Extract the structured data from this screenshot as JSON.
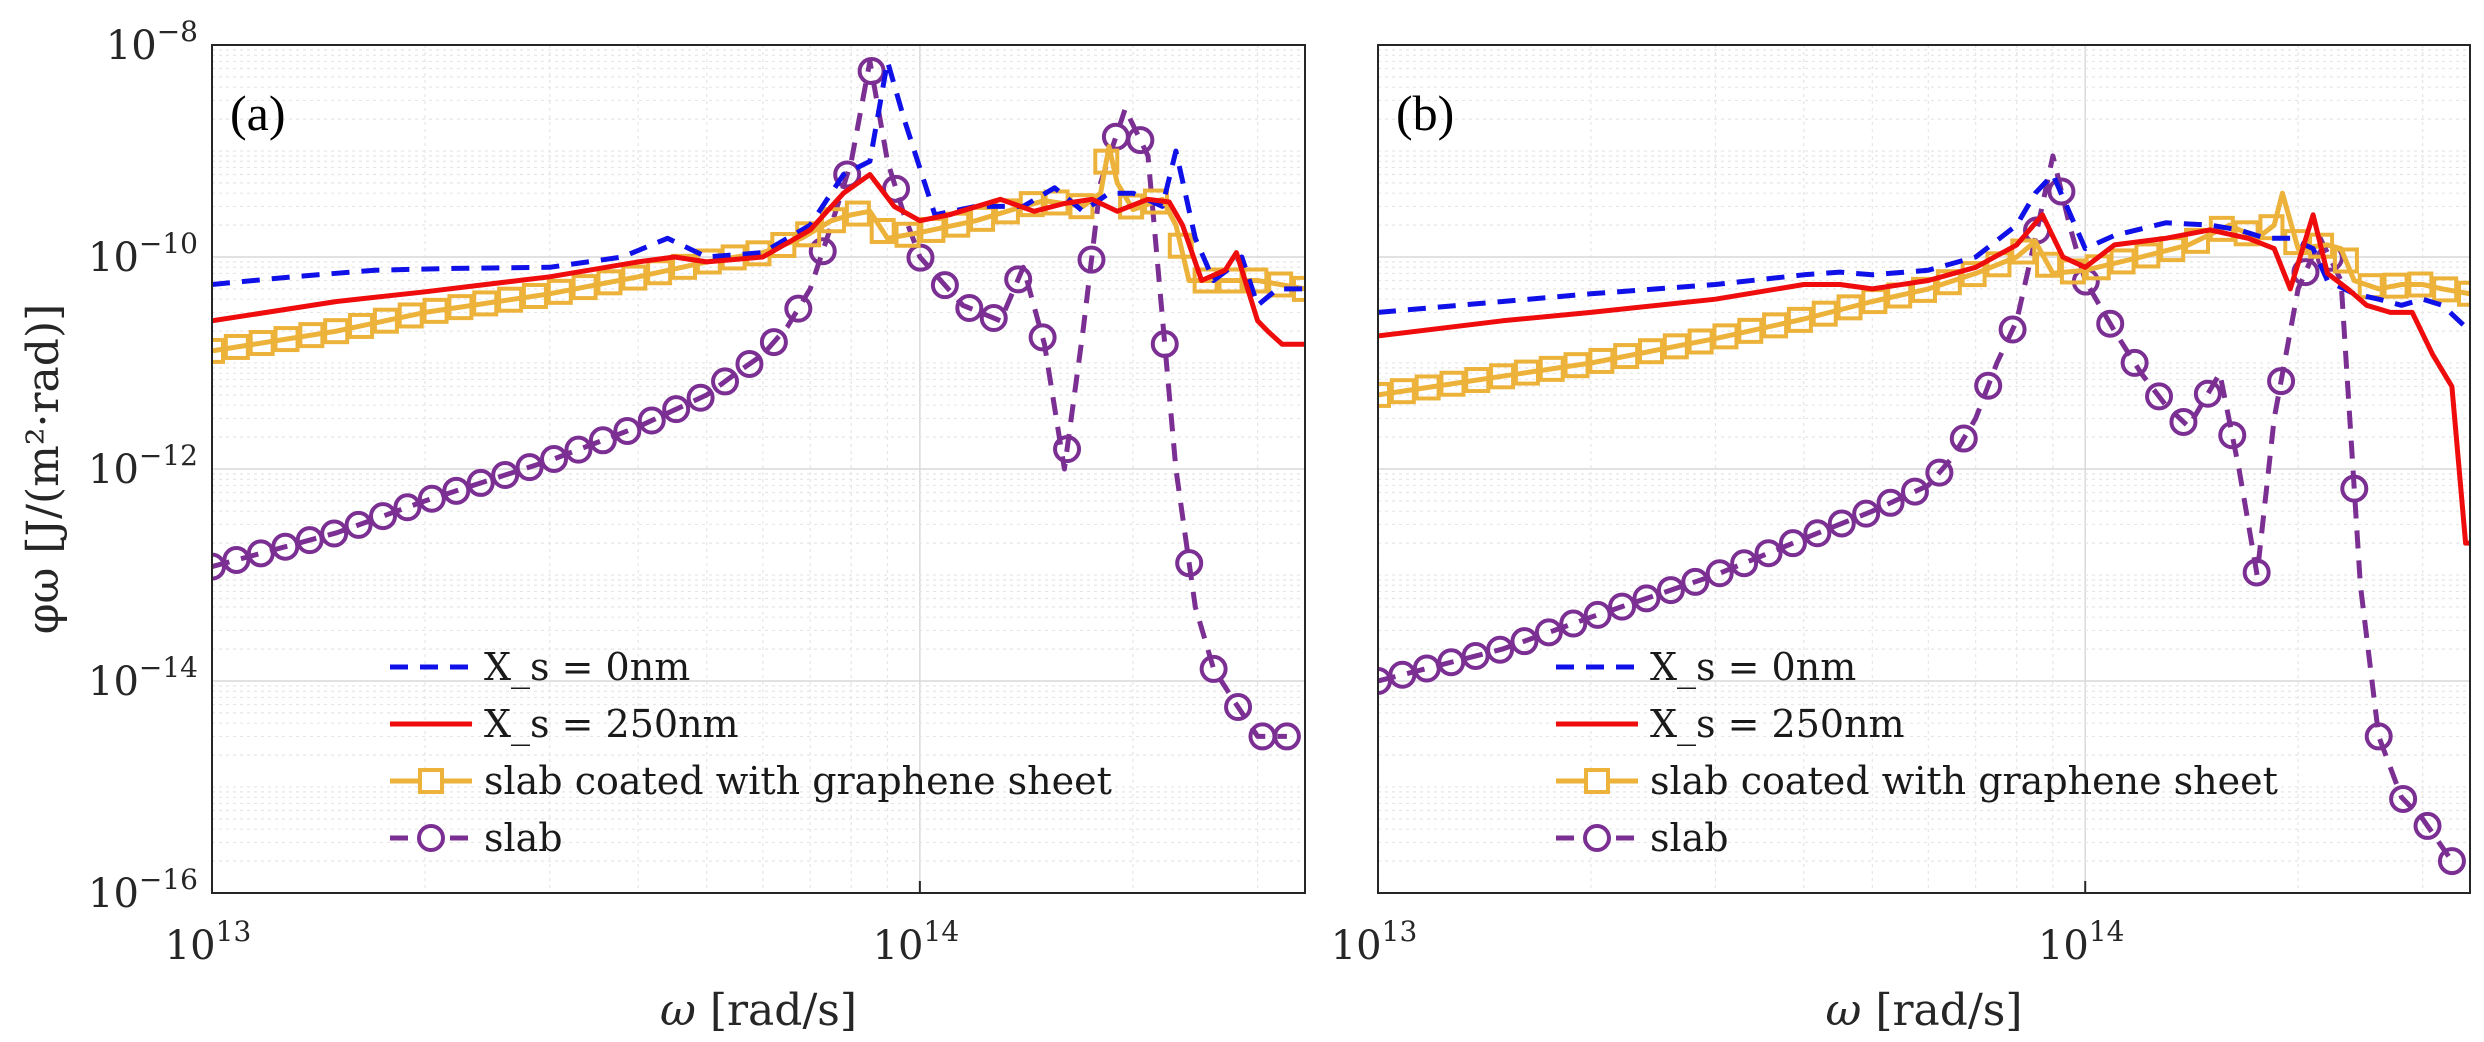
{
  "colors": {
    "xs0": "#1010e8",
    "xs250": "#ee0c0c",
    "coated": "#ecb23a",
    "slab": "#7b2f93",
    "grid_major": "#d9d9d9",
    "grid_minor": "#e6e6e6",
    "axis": "#262626"
  },
  "axes": {
    "ylabel": "φω [J/(m²·rad)]",
    "xlabel_symbol": "ω",
    "xlabel_unit": "[rad/s]",
    "x_ticks": [
      {
        "base": "10",
        "exp": "13"
      },
      {
        "base": "10",
        "exp": "14"
      }
    ],
    "y_ticks": [
      {
        "base": "10",
        "exp": "−8"
      },
      {
        "base": "10",
        "exp": "−10"
      },
      {
        "base": "10",
        "exp": "−12"
      },
      {
        "base": "10",
        "exp": "−14"
      },
      {
        "base": "10",
        "exp": "−16"
      }
    ]
  },
  "legend": {
    "xs0": "X_s = 0nm",
    "xs250": "X_s = 250nm",
    "coated": "slab coated with graphene sheet",
    "slab": "slab"
  },
  "chart_data": [
    {
      "type": "line",
      "panel": "(a)",
      "xscale": "log",
      "yscale": "log",
      "xlim": [
        10000000000000.0,
        350000000000000.0
      ],
      "ylim": [
        1e-16,
        1e-08
      ],
      "xlabel": "ω [rad/s]",
      "ylabel": "φω [J/(m²·rad)]",
      "grid": true,
      "legend_position": "lower-left",
      "series": [
        {
          "name": "X_s = 0nm",
          "style": "dashed",
          "x": [
            10000000000000.0,
            13000000000000.0,
            17000000000000.0,
            22000000000000.0,
            30000000000000.0,
            38000000000000.0,
            44000000000000.0,
            50000000000000.0,
            60000000000000.0,
            70000000000000.0,
            78000000000000.0,
            85000000000000.0,
            90000000000000.0,
            95000000000000.0,
            105000000000000.0,
            120000000000000.0,
            140000000000000.0,
            155000000000000.0,
            170000000000000.0,
            185000000000000.0,
            200000000000000.0,
            220000000000000.0,
            230000000000000.0,
            245000000000000.0,
            260000000000000.0,
            275000000000000.0,
            285000000000000.0,
            300000000000000.0,
            320000000000000.0,
            350000000000000.0
          ],
          "y": [
            5.5e-11,
            6.5e-11,
            7.5e-11,
            7.8e-11,
            8e-11,
            1e-10,
            1.5e-10,
            1e-10,
            1.1e-10,
            2e-10,
            6e-10,
            8e-10,
            7e-09,
            2e-09,
            2.5e-10,
            3e-10,
            3e-10,
            4.5e-10,
            2.7e-10,
            4e-10,
            4e-10,
            3e-10,
            1e-09,
            1.5e-10,
            6e-11,
            8e-11,
            1e-10,
            3.5e-11,
            5e-11,
            5e-11
          ]
        },
        {
          "name": "X_s = 250nm",
          "style": "solid",
          "x": [
            10000000000000.0,
            15000000000000.0,
            20000000000000.0,
            30000000000000.0,
            40000000000000.0,
            45000000000000.0,
            50000000000000.0,
            60000000000000.0,
            70000000000000.0,
            78000000000000.0,
            85000000000000.0,
            92000000000000.0,
            100000000000000.0,
            110000000000000.0,
            130000000000000.0,
            145000000000000.0,
            160000000000000.0,
            175000000000000.0,
            190000000000000.0,
            210000000000000.0,
            225000000000000.0,
            235000000000000.0,
            250000000000000.0,
            270000000000000.0,
            280000000000000.0,
            300000000000000.0,
            310000000000000.0,
            325000000000000.0,
            350000000000000.0
          ],
          "y": [
            2.5e-11,
            3.8e-11,
            4.7e-11,
            6.5e-11,
            9e-11,
            1e-10,
            9e-11,
            1e-10,
            1.8e-10,
            4e-10,
            6e-10,
            3e-10,
            2.2e-10,
            2.5e-10,
            3.5e-10,
            2.7e-10,
            3.2e-10,
            3.5e-10,
            2.7e-10,
            3.5e-10,
            3.3e-10,
            2e-10,
            6e-11,
            7.5e-11,
            1.1e-10,
            2.5e-11,
            2e-11,
            1.5e-11,
            1.5e-11
          ]
        },
        {
          "name": "slab coated with graphene sheet",
          "style": "solid-square",
          "x": [
            10000000000000.0,
            15000000000000.0,
            20000000000000.0,
            30000000000000.0,
            40000000000000.0,
            50000000000000.0,
            60000000000000.0,
            68000000000000.0,
            75000000000000.0,
            80000000000000.0,
            85000000000000.0,
            90000000000000.0,
            100000000000000.0,
            120000000000000.0,
            140000000000000.0,
            150000000000000.0,
            170000000000000.0,
            180000000000000.0,
            185000000000000.0,
            190000000000000.0,
            200000000000000.0,
            220000000000000.0,
            230000000000000.0,
            240000000000000.0,
            260000000000000.0,
            300000000000000.0,
            350000000000000.0
          ],
          "y": [
            1.3e-11,
            2e-11,
            3e-11,
            4.5e-11,
            6.5e-11,
            9e-11,
            1.1e-10,
            1.5e-10,
            2.2e-10,
            2.5e-10,
            2.7e-10,
            1.5e-10,
            1.7e-10,
            2.2e-10,
            3e-10,
            3.4e-10,
            3e-10,
            4e-10,
            1.1e-09,
            5e-10,
            2.8e-10,
            3.5e-10,
            2e-10,
            6e-11,
            6e-11,
            6e-11,
            5e-11
          ]
        },
        {
          "name": "slab",
          "style": "dashed-circle",
          "x": [
            10000000000000.0,
            15000000000000.0,
            20000000000000.0,
            30000000000000.0,
            40000000000000.0,
            50000000000000.0,
            55000000000000.0,
            60000000000000.0,
            65000000000000.0,
            70000000000000.0,
            75000000000000.0,
            80000000000000.0,
            85000000000000.0,
            90000000000000.0,
            95000000000000.0,
            100000000000000.0,
            115000000000000.0,
            130000000000000.0,
            140000000000000.0,
            150000000000000.0,
            160000000000000.0,
            170000000000000.0,
            180000000000000.0,
            195000000000000.0,
            210000000000000.0,
            230000000000000.0,
            245000000000000.0,
            260000000000000.0,
            280000000000000.0,
            300000000000000.0,
            330000000000000.0
          ],
          "y": [
            1.2e-13,
            2.5e-13,
            5e-13,
            1.2e-12,
            2.5e-12,
            5e-12,
            8e-12,
            1.2e-11,
            2.2e-11,
            5e-11,
            2e-10,
            8e-10,
            7e-09,
            8e-10,
            2.5e-10,
            1e-10,
            3.5e-11,
            2.5e-11,
            8e-11,
            1.5e-11,
            1e-12,
            2e-11,
            5e-10,
            2.5e-09,
            9e-10,
            1e-12,
            5e-14,
            1.3e-14,
            6e-15,
            3e-15,
            3e-15
          ]
        }
      ]
    },
    {
      "type": "line",
      "panel": "(b)",
      "xscale": "log",
      "yscale": "log",
      "xlim": [
        10000000000000.0,
        350000000000000.0
      ],
      "ylim": [
        1e-16,
        1e-08
      ],
      "xlabel": "ω [rad/s]",
      "ylabel": "",
      "grid": true,
      "legend_position": "lower-left",
      "series": [
        {
          "name": "X_s = 0nm",
          "style": "dashed",
          "x": [
            10000000000000.0,
            15000000000000.0,
            20000000000000.0,
            30000000000000.0,
            40000000000000.0,
            45000000000000.0,
            50000000000000.0,
            60000000000000.0,
            70000000000000.0,
            80000000000000.0,
            85000000000000.0,
            90000000000000.0,
            100000000000000.0,
            110000000000000.0,
            130000000000000.0,
            150000000000000.0,
            165000000000000.0,
            180000000000000.0,
            195000000000000.0,
            210000000000000.0,
            220000000000000.0,
            240000000000000.0,
            260000000000000.0,
            280000000000000.0,
            300000000000000.0,
            320000000000000.0,
            350000000000000.0
          ],
          "y": [
            3e-11,
            3.8e-11,
            4.5e-11,
            5.5e-11,
            6.8e-11,
            7.2e-11,
            6.8e-11,
            7.5e-11,
            1e-10,
            2e-10,
            4e-10,
            6e-10,
            1.2e-10,
            1.6e-10,
            2.1e-10,
            2e-10,
            1.8e-10,
            1.5e-10,
            1.5e-10,
            1.2e-10,
            6e-11,
            4.5e-11,
            4e-11,
            3.5e-11,
            4e-11,
            3.5e-11,
            2e-11
          ]
        },
        {
          "name": "X_s = 250nm",
          "style": "solid",
          "x": [
            10000000000000.0,
            15000000000000.0,
            20000000000000.0,
            30000000000000.0,
            40000000000000.0,
            45000000000000.0,
            50000000000000.0,
            60000000000000.0,
            70000000000000.0,
            80000000000000.0,
            87000000000000.0,
            93000000000000.0,
            100000000000000.0,
            110000000000000.0,
            130000000000000.0,
            150000000000000.0,
            170000000000000.0,
            185000000000000.0,
            195000000000000.0,
            210000000000000.0,
            220000000000000.0,
            235000000000000.0,
            250000000000000.0,
            270000000000000.0,
            290000000000000.0,
            310000000000000.0,
            330000000000000.0,
            345000000000000.0,
            350000000000000.0
          ],
          "y": [
            1.8e-11,
            2.5e-11,
            3e-11,
            4e-11,
            5.5e-11,
            5.5e-11,
            5e-11,
            6e-11,
            8e-11,
            1.3e-10,
            2.5e-10,
            1e-10,
            8e-11,
            1.3e-10,
            1.5e-10,
            1.8e-10,
            1.5e-10,
            1.2e-10,
            5e-11,
            2.5e-10,
            7e-11,
            5e-11,
            3.5e-11,
            3e-11,
            3e-11,
            1.2e-11,
            6e-12,
            2e-13,
            2e-13
          ]
        },
        {
          "name": "slab coated with graphene sheet",
          "style": "solid-square",
          "x": [
            10000000000000.0,
            15000000000000.0,
            20000000000000.0,
            30000000000000.0,
            40000000000000.0,
            50000000000000.0,
            60000000000000.0,
            70000000000000.0,
            80000000000000.0,
            85000000000000.0,
            90000000000000.0,
            100000000000000.0,
            120000000000000.0,
            140000000000000.0,
            160000000000000.0,
            175000000000000.0,
            185000000000000.0,
            190000000000000.0,
            200000000000000.0,
            220000000000000.0,
            230000000000000.0,
            240000000000000.0,
            260000000000000.0,
            280000000000000.0,
            300000000000000.0,
            320000000000000.0,
            350000000000000.0
          ],
          "y": [
            5e-12,
            7.5e-12,
            1e-11,
            1.7e-11,
            2.6e-11,
            3.8e-11,
            5e-11,
            7e-11,
            1e-10,
            1.4e-10,
            7e-11,
            7.5e-11,
            1e-10,
            1.3e-10,
            2e-10,
            1.5e-10,
            2e-10,
            4e-10,
            1.2e-10,
            1.3e-10,
            1.2e-10,
            6e-11,
            5e-11,
            5.5e-11,
            5.5e-11,
            5e-11,
            4.5e-11
          ]
        },
        {
          "name": "slab",
          "style": "dashed-circle",
          "x": [
            10000000000000.0,
            15000000000000.0,
            20000000000000.0,
            30000000000000.0,
            40000000000000.0,
            50000000000000.0,
            60000000000000.0,
            65000000000000.0,
            70000000000000.0,
            75000000000000.0,
            80000000000000.0,
            85000000000000.0,
            90000000000000.0,
            95000000000000.0,
            100000000000000.0,
            110000000000000.0,
            120000000000000.0,
            130000000000000.0,
            140000000000000.0,
            155000000000000.0,
            165000000000000.0,
            175000000000000.0,
            185000000000000.0,
            200000000000000.0,
            215000000000000.0,
            230000000000000.0,
            245000000000000.0,
            260000000000000.0,
            280000000000000.0,
            300000000000000.0,
            330000000000000.0
          ],
          "y": [
            1e-14,
            2e-14,
            4e-14,
            1e-13,
            2.2e-13,
            4e-13,
            7e-13,
            1.3e-12,
            3e-12,
            1e-11,
            2.5e-11,
            1.5e-10,
            9e-10,
            2e-10,
            6e-11,
            2e-11,
            8e-12,
            4e-12,
            2.5e-12,
            8e-12,
            1e-12,
            1e-13,
            3e-12,
            5e-11,
            1.5e-10,
            6e-11,
            8e-14,
            3e-15,
            8e-16,
            5e-16,
            2e-16
          ]
        }
      ]
    }
  ]
}
